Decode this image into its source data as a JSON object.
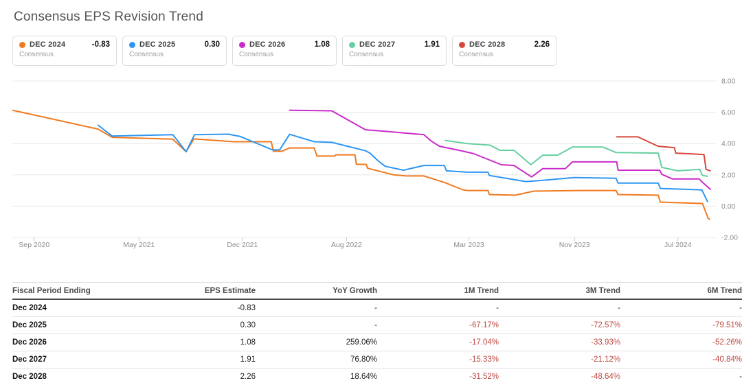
{
  "title": "Consensus EPS Revision Trend",
  "legend": {
    "cards": [
      {
        "id": "dec-2024",
        "label": "DEC 2024",
        "value": "-0.83",
        "sublabel": "Consensus",
        "color": "#f0791e"
      },
      {
        "id": "dec-2025",
        "label": "DEC 2025",
        "value": "0.30",
        "sublabel": "Consensus",
        "color": "#2d96f2"
      },
      {
        "id": "dec-2026",
        "label": "DEC 2026",
        "value": "1.08",
        "sublabel": "Consensus",
        "color": "#c92bc9"
      },
      {
        "id": "dec-2027",
        "label": "DEC 2027",
        "value": "1.91",
        "sublabel": "Consensus",
        "color": "#65cfa0"
      },
      {
        "id": "dec-2028",
        "label": "DEC 2028",
        "value": "2.26",
        "sublabel": "Consensus",
        "color": "#d4473c"
      }
    ]
  },
  "chart_data": {
    "type": "line",
    "title": "Consensus EPS Revision Trend",
    "ylabel": "EPS estimate",
    "ylim": [
      -2,
      8
    ],
    "grid": true,
    "legend_position": "top",
    "y_ticks": [
      "8.00",
      "6.00",
      "4.00",
      "2.00",
      "0.00",
      "-2.00"
    ],
    "y_tick_values": [
      8,
      6,
      4,
      2,
      0,
      -2
    ],
    "x_encoding": "fraction of plot width (time axis Sep 2020 - Aug 2024)",
    "x_ticks": [
      {
        "label": "Sep 2020",
        "pos": 0.031
      },
      {
        "label": "May 2021",
        "pos": 0.18
      },
      {
        "label": "Dec 2021",
        "pos": 0.327
      },
      {
        "label": "Aug 2022",
        "pos": 0.475
      },
      {
        "label": "Mar 2023",
        "pos": 0.649
      },
      {
        "label": "Nov 2023",
        "pos": 0.799
      },
      {
        "label": "Jul 2024",
        "pos": 0.946
      }
    ],
    "series": [
      {
        "id": "dec-2024",
        "name": "DEC 2024 Consensus",
        "color": "#f0791e",
        "points": [
          [
            0.0,
            6.13
          ],
          [
            0.122,
            4.92
          ],
          [
            0.142,
            4.4
          ],
          [
            0.228,
            4.28
          ],
          [
            0.247,
            3.48
          ],
          [
            0.258,
            4.3
          ],
          [
            0.314,
            4.12
          ],
          [
            0.368,
            4.12
          ],
          [
            0.371,
            3.51
          ],
          [
            0.383,
            3.51
          ],
          [
            0.394,
            3.72
          ],
          [
            0.429,
            3.72
          ],
          [
            0.433,
            3.2
          ],
          [
            0.458,
            3.2
          ],
          [
            0.46,
            3.28
          ],
          [
            0.487,
            3.28
          ],
          [
            0.489,
            2.67
          ],
          [
            0.503,
            2.67
          ],
          [
            0.505,
            2.42
          ],
          [
            0.542,
            2.0
          ],
          [
            0.56,
            1.93
          ],
          [
            0.585,
            1.93
          ],
          [
            0.615,
            1.5
          ],
          [
            0.64,
            1.05
          ],
          [
            0.647,
            1.0
          ],
          [
            0.676,
            1.0
          ],
          [
            0.678,
            0.74
          ],
          [
            0.715,
            0.7
          ],
          [
            0.741,
            0.96
          ],
          [
            0.806,
            1.0
          ],
          [
            0.858,
            1.0
          ],
          [
            0.861,
            0.74
          ],
          [
            0.918,
            0.7
          ],
          [
            0.921,
            0.26
          ],
          [
            0.981,
            0.17
          ],
          [
            0.989,
            -0.78
          ],
          [
            0.991,
            -0.83
          ]
        ]
      },
      {
        "id": "dec-2025",
        "name": "DEC 2025 Consensus",
        "color": "#2d96f2",
        "points": [
          [
            0.122,
            5.17
          ],
          [
            0.142,
            4.48
          ],
          [
            0.228,
            4.57
          ],
          [
            0.247,
            3.48
          ],
          [
            0.259,
            4.57
          ],
          [
            0.307,
            4.6
          ],
          [
            0.324,
            4.45
          ],
          [
            0.37,
            3.59
          ],
          [
            0.38,
            3.6
          ],
          [
            0.394,
            4.59
          ],
          [
            0.429,
            4.12
          ],
          [
            0.454,
            4.08
          ],
          [
            0.502,
            3.54
          ],
          [
            0.508,
            3.4
          ],
          [
            0.52,
            2.89
          ],
          [
            0.53,
            2.55
          ],
          [
            0.556,
            2.3
          ],
          [
            0.585,
            2.6
          ],
          [
            0.614,
            2.6
          ],
          [
            0.617,
            2.26
          ],
          [
            0.647,
            2.17
          ],
          [
            0.676,
            2.17
          ],
          [
            0.678,
            1.96
          ],
          [
            0.73,
            1.57
          ],
          [
            0.754,
            1.65
          ],
          [
            0.798,
            1.83
          ],
          [
            0.858,
            1.78
          ],
          [
            0.861,
            1.48
          ],
          [
            0.918,
            1.48
          ],
          [
            0.921,
            1.13
          ],
          [
            0.98,
            1.04
          ],
          [
            0.988,
            0.3
          ]
        ]
      },
      {
        "id": "dec-2026",
        "name": "DEC 2026 Consensus",
        "color": "#c92bc9",
        "points": [
          [
            0.394,
            6.13
          ],
          [
            0.454,
            6.09
          ],
          [
            0.502,
            4.88
          ],
          [
            0.526,
            4.8
          ],
          [
            0.585,
            4.57
          ],
          [
            0.595,
            4.17
          ],
          [
            0.607,
            3.83
          ],
          [
            0.64,
            3.52
          ],
          [
            0.656,
            3.35
          ],
          [
            0.695,
            2.65
          ],
          [
            0.713,
            2.6
          ],
          [
            0.738,
            1.87
          ],
          [
            0.754,
            2.4
          ],
          [
            0.786,
            2.4
          ],
          [
            0.796,
            2.83
          ],
          [
            0.859,
            2.83
          ],
          [
            0.861,
            2.3
          ],
          [
            0.92,
            2.3
          ],
          [
            0.923,
            2.04
          ],
          [
            0.938,
            1.74
          ],
          [
            0.976,
            1.74
          ],
          [
            0.981,
            1.52
          ],
          [
            0.992,
            1.08
          ]
        ]
      },
      {
        "id": "dec-2027",
        "name": "DEC 2027 Consensus",
        "color": "#65cfa0",
        "points": [
          [
            0.615,
            4.2
          ],
          [
            0.647,
            4.0
          ],
          [
            0.679,
            3.9
          ],
          [
            0.693,
            3.57
          ],
          [
            0.713,
            3.57
          ],
          [
            0.737,
            2.65
          ],
          [
            0.754,
            3.26
          ],
          [
            0.775,
            3.26
          ],
          [
            0.796,
            3.78
          ],
          [
            0.839,
            3.78
          ],
          [
            0.858,
            3.43
          ],
          [
            0.918,
            3.39
          ],
          [
            0.923,
            2.48
          ],
          [
            0.946,
            2.26
          ],
          [
            0.977,
            2.35
          ],
          [
            0.981,
            1.96
          ],
          [
            0.988,
            1.91
          ]
        ]
      },
      {
        "id": "dec-2028",
        "name": "DEC 2028 Consensus",
        "color": "#d4473c",
        "points": [
          [
            0.859,
            4.43
          ],
          [
            0.889,
            4.43
          ],
          [
            0.918,
            3.83
          ],
          [
            0.941,
            3.74
          ],
          [
            0.943,
            3.39
          ],
          [
            0.983,
            3.3
          ],
          [
            0.986,
            2.35
          ],
          [
            0.992,
            2.26
          ]
        ]
      }
    ]
  },
  "table": {
    "headers": [
      "Fiscal Period Ending",
      "EPS Estimate",
      "YoY Growth",
      "1M Trend",
      "3M Trend",
      "6M Trend"
    ],
    "rows": [
      [
        "Dec 2024",
        "-0.83",
        "-",
        "-",
        "-",
        "-"
      ],
      [
        "Dec 2025",
        "0.30",
        "-",
        "-67.17%",
        "-72.57%",
        "-79.51%"
      ],
      [
        "Dec 2026",
        "1.08",
        "259.06%",
        "-17.04%",
        "-33.93%",
        "-52.26%"
      ],
      [
        "Dec 2027",
        "1.91",
        "76.80%",
        "-15.33%",
        "-21.12%",
        "-40.84%"
      ],
      [
        "Dec 2028",
        "2.26",
        "18.64%",
        "-31.52%",
        "-48.64%",
        "-"
      ]
    ]
  },
  "colors": {
    "negative_trend": "#bf4a43",
    "axis_text": "#8a8a8a",
    "grid_line": "#e8e8e8",
    "tick_mark": "#c9c9c9"
  }
}
